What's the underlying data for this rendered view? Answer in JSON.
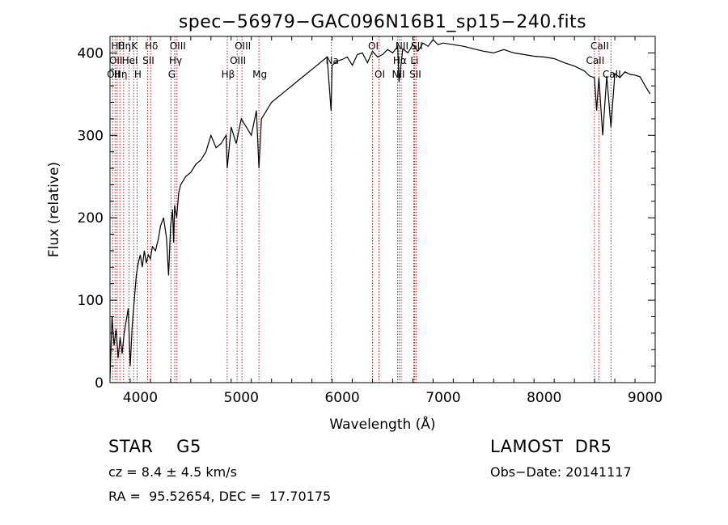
{
  "chart_data": {
    "type": "line",
    "title": "spec−56979−GAC096N16B1_sp15−240.fits",
    "xlabel": "Wavelength (Å)",
    "ylabel": "Flux (relative)",
    "xlim": [
      3700,
      9100
    ],
    "ylim": [
      0,
      420
    ],
    "xticks": [
      4000,
      5000,
      6000,
      7000,
      8000,
      9000
    ],
    "yticks": [
      0,
      100,
      200,
      300,
      400
    ],
    "grid": false,
    "series": [
      {
        "x": [
          3700,
          3720,
          3740,
          3760,
          3780,
          3800,
          3820,
          3840,
          3860,
          3880,
          3900,
          3920,
          3940,
          3960,
          3980,
          4000,
          4020,
          4040,
          4060,
          4080,
          4100,
          4120,
          4150,
          4180,
          4200,
          4230,
          4260,
          4280,
          4300,
          4320,
          4330,
          4340,
          4360,
          4380,
          4400,
          4450,
          4500,
          4550,
          4600,
          4650,
          4700,
          4750,
          4800,
          4850,
          4861,
          4900,
          4950,
          5000,
          5050,
          5100,
          5150,
          5175,
          5200,
          5250,
          5300,
          5350,
          5400,
          5450,
          5500,
          5550,
          5600,
          5650,
          5700,
          5750,
          5800,
          5850,
          5890,
          5900,
          5950,
          6000,
          6050,
          6100,
          6150,
          6200,
          6250,
          6300,
          6350,
          6400,
          6450,
          6500,
          6550,
          6563,
          6600,
          6650,
          6700,
          6750,
          6800,
          6850,
          6900,
          6950,
          7000,
          7100,
          7200,
          7300,
          7400,
          7500,
          7600,
          7700,
          7800,
          7900,
          8000,
          8100,
          8200,
          8300,
          8400,
          8450,
          8498,
          8520,
          8542,
          8580,
          8620,
          8662,
          8700,
          8750,
          8800,
          8850,
          8900,
          8950,
          9000,
          9050
        ],
        "y": [
          5,
          80,
          45,
          65,
          30,
          55,
          35,
          60,
          75,
          90,
          20,
          70,
          100,
          130,
          145,
          155,
          140,
          160,
          145,
          155,
          150,
          165,
          160,
          175,
          190,
          200,
          175,
          130,
          190,
          210,
          170,
          215,
          200,
          230,
          240,
          250,
          255,
          265,
          270,
          280,
          300,
          285,
          290,
          300,
          260,
          310,
          290,
          320,
          310,
          300,
          330,
          260,
          320,
          330,
          340,
          345,
          350,
          355,
          360,
          365,
          370,
          375,
          380,
          385,
          390,
          395,
          330,
          385,
          390,
          392,
          395,
          385,
          398,
          400,
          388,
          402,
          395,
          398,
          404,
          400,
          408,
          365,
          405,
          400,
          410,
          402,
          412,
          408,
          416,
          410,
          412,
          410,
          408,
          405,
          402,
          400,
          404,
          400,
          398,
          396,
          395,
          393,
          388,
          384,
          378,
          372,
          370,
          330,
          370,
          300,
          372,
          310,
          375,
          370,
          377,
          374,
          373,
          371,
          360,
          350
        ]
      }
    ],
    "lines": [
      {
        "wl": 3727,
        "label": "OII",
        "row": 2
      },
      {
        "wl": 3750,
        "label": "OII",
        "row": 1
      },
      {
        "wl": 3770,
        "label": "Hθ",
        "row": 0
      },
      {
        "wl": 3798,
        "label": "Hη",
        "row": 2
      },
      {
        "wl": 3835,
        "label": "Hη",
        "row": 0
      },
      {
        "wl": 3889,
        "label": "HeI",
        "row": 1
      },
      {
        "wl": 3934,
        "label": "K",
        "row": 0
      },
      {
        "wl": 3968,
        "label": "H",
        "row": 2
      },
      {
        "wl": 4072,
        "label": "SII",
        "row": 1
      },
      {
        "wl": 4102,
        "label": "Hδ",
        "row": 0
      },
      {
        "wl": 4304,
        "label": "G",
        "row": 2
      },
      {
        "wl": 4341,
        "label": "Hγ",
        "row": 1
      },
      {
        "wl": 4363,
        "label": "OIII",
        "row": 0
      },
      {
        "wl": 4861,
        "label": "Hβ",
        "row": 2
      },
      {
        "wl": 4959,
        "label": "OIII",
        "row": 1
      },
      {
        "wl": 5007,
        "label": "OIII",
        "row": 0
      },
      {
        "wl": 5175,
        "label": "Mg",
        "row": 2
      },
      {
        "wl": 5893,
        "label": "Na",
        "row": 1
      },
      {
        "wl": 6300,
        "label": "OI",
        "row": 0
      },
      {
        "wl": 6364,
        "label": "OI",
        "row": 2
      },
      {
        "wl": 6548,
        "label": "NII",
        "row": 2
      },
      {
        "wl": 6563,
        "label": "Hα",
        "row": 1
      },
      {
        "wl": 6584,
        "label": "NII",
        "row": 0
      },
      {
        "wl": 6708,
        "label": "Li",
        "row": 1
      },
      {
        "wl": 6716,
        "label": "SII",
        "row": 2
      },
      {
        "wl": 6731,
        "label": "SII",
        "row": 0
      },
      {
        "wl": 8498,
        "label": "CaII",
        "row": 1
      },
      {
        "wl": 8542,
        "label": "CaII",
        "row": 0
      },
      {
        "wl": 8662,
        "label": "CaII",
        "row": 2
      }
    ]
  },
  "info": {
    "class": "STAR    G5",
    "survey": "LAMOST  DR5",
    "cz": "cz = 8.4 ± 4.5 km/s",
    "obs_date": "Obs−Date: 20141117",
    "radec": "RA =  95.52654, DEC =  17.70175"
  },
  "colors": {
    "spectrum": "#000000",
    "line_markers": "#b22222",
    "axes": "#000000"
  }
}
